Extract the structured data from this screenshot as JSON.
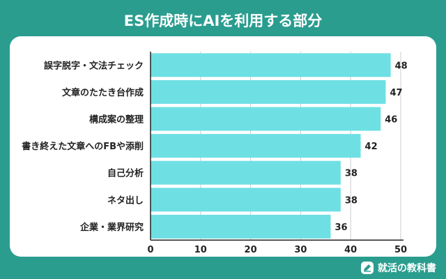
{
  "chart_data": {
    "type": "bar",
    "orientation": "horizontal",
    "title": "ES作成時にAIを利用する部分",
    "categories": [
      "誤字脱字・文法チェック",
      "文章のたたき台作成",
      "構成案の整理",
      "書き終えた文章へのFBや添削",
      "自己分析",
      "ネタ出し",
      "企業・業界研究"
    ],
    "values": [
      48,
      47,
      46,
      42,
      38,
      38,
      36
    ],
    "xticks": [
      0,
      10,
      20,
      30,
      40,
      50
    ],
    "xlim": [
      0,
      50
    ],
    "grid": true,
    "bar_color": "#6ee0e4",
    "grid_color": "#cccccc",
    "axis_color": "#222222"
  },
  "footer": {
    "brand": "就活の教科書",
    "icon": "pencil-icon"
  },
  "colors": {
    "background": "#2a9d8f",
    "card": "#ffffff"
  }
}
